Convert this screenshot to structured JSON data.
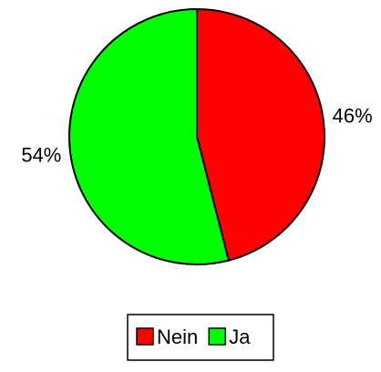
{
  "chart_data": {
    "type": "pie",
    "categories": [
      "Nein",
      "Ja"
    ],
    "values": [
      46,
      54
    ],
    "value_labels": [
      "46%",
      "54%"
    ],
    "colors": [
      "#ff0000",
      "#00ff00"
    ],
    "legend": "bottom"
  }
}
